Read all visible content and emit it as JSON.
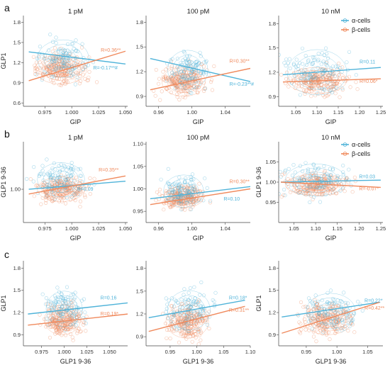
{
  "chart_data": [
    {
      "type": "scatter",
      "row": "a",
      "title": "1 pM",
      "xlabel": "GIP",
      "ylabel": "GLP1",
      "xlim": [
        0.955,
        1.052
      ],
      "ylim": [
        0.55,
        1.9
      ],
      "xticks": [
        "0.975",
        "1.000",
        "1.025",
        "1.050"
      ],
      "xtick_values": [
        0.975,
        1.0,
        1.025,
        1.05
      ],
      "yticks": [
        "0.6",
        "0.9",
        "1.2",
        "1.5",
        "1.8"
      ],
      "ytick_values": [
        0.6,
        0.9,
        1.2,
        1.5,
        1.8
      ],
      "cloud": {
        "alpha": {
          "cx": 0.992,
          "cy": 1.26,
          "sx": 0.012,
          "sy": 0.14
        },
        "beta": {
          "cx": 0.99,
          "cy": 1.1,
          "sx": 0.012,
          "sy": 0.11
        }
      },
      "series": [
        {
          "name": "α-cells",
          "color": "#4fb3d9",
          "fit": [
            [
              0.96,
              1.36
            ],
            [
              1.05,
              1.18
            ]
          ],
          "r_label": "R=-0.17**#",
          "r_pos": [
            1.02,
            1.1
          ]
        },
        {
          "name": "β-cells",
          "color": "#f08a5d",
          "fit": [
            [
              0.96,
              0.93
            ],
            [
              1.05,
              1.37
            ]
          ],
          "r_label": "R=0.36**",
          "r_pos": [
            1.027,
            1.36
          ]
        }
      ]
    },
    {
      "type": "scatter",
      "row": "a",
      "title": "100 pM",
      "xlabel": "GIP",
      "ylabel": "",
      "xlim": [
        0.945,
        1.07
      ],
      "ylim": [
        0.78,
        1.88
      ],
      "xticks": [
        "0.96",
        "1.00",
        "1.04"
      ],
      "xtick_values": [
        0.96,
        1.0,
        1.04
      ],
      "yticks": [
        "0.9",
        "1.2",
        "1.5",
        "1.8"
      ],
      "ytick_values": [
        0.9,
        1.2,
        1.5,
        1.8
      ],
      "cloud": {
        "alpha": {
          "cx": 0.995,
          "cy": 1.22,
          "sx": 0.012,
          "sy": 0.12
        },
        "beta": {
          "cx": 0.99,
          "cy": 1.08,
          "sx": 0.013,
          "sy": 0.09
        }
      },
      "series": [
        {
          "name": "α-cells",
          "color": "#4fb3d9",
          "fit": [
            [
              0.95,
              1.36
            ],
            [
              1.07,
              1.08
            ]
          ],
          "r_label": "R=-0.23**#",
          "r_pos": [
            1.045,
            1.03
          ]
        },
        {
          "name": "β-cells",
          "color": "#f08a5d",
          "fit": [
            [
              0.95,
              0.98
            ],
            [
              1.07,
              1.24
            ]
          ],
          "r_label": "R=0.30**",
          "r_pos": [
            1.045,
            1.31
          ]
        }
      ]
    },
    {
      "type": "scatter",
      "row": "a",
      "title": "10 nM",
      "xlabel": "GIP",
      "ylabel": "",
      "xlim": [
        1.01,
        1.255
      ],
      "ylim": [
        0.78,
        1.9
      ],
      "xticks": [
        "1.05",
        "1.10",
        "1.15",
        "1.20",
        "1.25"
      ],
      "xtick_values": [
        1.05,
        1.1,
        1.15,
        1.2,
        1.25
      ],
      "yticks": [
        "0.9",
        "1.2",
        "1.5",
        "1.8"
      ],
      "ytick_values": [
        0.9,
        1.2,
        1.5,
        1.8
      ],
      "cloud": {
        "alpha": {
          "cx": 1.1,
          "cy": 1.2,
          "sx": 0.035,
          "sy": 0.14
        },
        "beta": {
          "cx": 1.1,
          "cy": 1.1,
          "sx": 0.035,
          "sy": 0.08
        }
      },
      "series": [
        {
          "name": "α-cells",
          "color": "#4fb3d9",
          "fit": [
            [
              1.02,
              1.17
            ],
            [
              1.25,
              1.26
            ]
          ],
          "r_label": "R=0.11",
          "r_pos": [
            1.2,
            1.31
          ]
        },
        {
          "name": "β-cells",
          "color": "#f08a5d",
          "fit": [
            [
              1.02,
              1.08
            ],
            [
              1.25,
              1.12
            ]
          ],
          "r_label": "R=0.06*",
          "r_pos": [
            1.2,
            1.07
          ]
        }
      ]
    },
    {
      "type": "scatter",
      "row": "b",
      "title": "1 pM",
      "xlabel": "GIP",
      "ylabel": "GLP1 9-36",
      "xlim": [
        0.955,
        1.052
      ],
      "ylim": [
        0.93,
        1.1
      ],
      "xticks": [
        "0.975",
        "1.000",
        "1.025",
        "1.050"
      ],
      "xtick_values": [
        0.975,
        1.0,
        1.025,
        1.05
      ],
      "yticks": [
        "1.00"
      ],
      "ytick_values": [
        1.0
      ],
      "cloud": {
        "alpha": {
          "cx": 0.99,
          "cy": 1.02,
          "sx": 0.011,
          "sy": 0.018
        },
        "beta": {
          "cx": 0.99,
          "cy": 1.0,
          "sx": 0.011,
          "sy": 0.013
        }
      },
      "series": [
        {
          "name": "α-cells",
          "color": "#4fb3d9",
          "fit": [
            [
              0.96,
              1.0
            ],
            [
              1.05,
              1.017
            ]
          ],
          "r_label": "R=0.09",
          "r_pos": [
            1.005,
            0.997
          ]
        },
        {
          "name": "β-cells",
          "color": "#f08a5d",
          "fit": [
            [
              0.96,
              0.99
            ],
            [
              1.05,
              1.028
            ]
          ],
          "r_label": "R=0.35**",
          "r_pos": [
            1.025,
            1.037
          ]
        }
      ]
    },
    {
      "type": "scatter",
      "row": "b",
      "title": "100 pM",
      "xlabel": "GIP",
      "ylabel": "",
      "xlim": [
        0.945,
        1.07
      ],
      "ylim": [
        0.925,
        1.105
      ],
      "xticks": [
        "0.96",
        "1.00",
        "1.04"
      ],
      "xtick_values": [
        0.96,
        1.0,
        1.04
      ],
      "yticks": [
        "0.95",
        "1.00",
        "1.05",
        "1.10"
      ],
      "ytick_values": [
        0.95,
        1.0,
        1.05,
        1.1
      ],
      "cloud": {
        "alpha": {
          "cx": 0.99,
          "cy": 0.995,
          "sx": 0.012,
          "sy": 0.018
        },
        "beta": {
          "cx": 0.99,
          "cy": 0.982,
          "sx": 0.012,
          "sy": 0.012
        }
      },
      "series": [
        {
          "name": "α-cells",
          "color": "#4fb3d9",
          "fit": [
            [
              0.95,
              0.978
            ],
            [
              1.07,
              1.005
            ]
          ],
          "r_label": "R=0.10",
          "r_pos": [
            1.038,
            0.974
          ]
        },
        {
          "name": "β-cells",
          "color": "#f08a5d",
          "fit": [
            [
              0.95,
              0.965
            ],
            [
              1.07,
              1.0
            ]
          ],
          "r_label": "R=0.30**",
          "r_pos": [
            1.045,
            1.013
          ]
        }
      ]
    },
    {
      "type": "scatter",
      "row": "b",
      "title": "10 nM",
      "xlabel": "GIP",
      "ylabel": "GLP1 9-36",
      "xlim": [
        1.015,
        1.255
      ],
      "ylim": [
        0.9,
        1.1
      ],
      "xticks": [
        "1.05",
        "1.10",
        "1.15",
        "1.20",
        "1.25"
      ],
      "xtick_values": [
        1.05,
        1.1,
        1.15,
        1.2,
        1.25
      ],
      "yticks": [
        "0.95",
        "1.00",
        "1.05"
      ],
      "ytick_values": [
        0.95,
        1.0,
        1.05
      ],
      "cloud": {
        "alpha": {
          "cx": 1.1,
          "cy": 1.005,
          "sx": 0.035,
          "sy": 0.02
        },
        "beta": {
          "cx": 1.1,
          "cy": 0.993,
          "sx": 0.035,
          "sy": 0.013
        }
      },
      "series": [
        {
          "name": "α-cells",
          "color": "#4fb3d9",
          "fit": [
            [
              1.02,
              1.0
            ],
            [
              1.25,
              1.005
            ]
          ],
          "r_label": "R=0.03",
          "r_pos": [
            1.2,
            1.01
          ]
        },
        {
          "name": "β-cells",
          "color": "#f08a5d",
          "fit": [
            [
              1.02,
              1.0
            ],
            [
              1.25,
              0.987
            ]
          ],
          "r_label": "R=-0.07*",
          "r_pos": [
            1.2,
            0.98
          ]
        }
      ]
    },
    {
      "type": "scatter",
      "row": "c",
      "title": "",
      "xlabel": "GLP1 9-36",
      "ylabel": "GLP1",
      "xlim": [
        0.955,
        1.07
      ],
      "ylim": [
        0.75,
        1.9
      ],
      "xticks": [
        "0.975",
        "1.000",
        "1.025",
        "1.050"
      ],
      "xtick_values": [
        0.975,
        1.0,
        1.025,
        1.05
      ],
      "yticks": [
        "0.9",
        "1.2",
        "1.5",
        "1.8"
      ],
      "ytick_values": [
        0.9,
        1.2,
        1.5,
        1.8
      ],
      "cloud": {
        "alpha": {
          "cx": 1.0,
          "cy": 1.25,
          "sx": 0.01,
          "sy": 0.12
        },
        "beta": {
          "cx": 0.998,
          "cy": 1.1,
          "sx": 0.01,
          "sy": 0.1
        }
      },
      "series": [
        {
          "name": "α-cells",
          "color": "#4fb3d9",
          "fit": [
            [
              0.96,
              1.18
            ],
            [
              1.07,
              1.33
            ]
          ],
          "r_label": "R=0.16",
          "r_pos": [
            1.04,
            1.38
          ]
        },
        {
          "name": "β-cells",
          "color": "#f08a5d",
          "fit": [
            [
              0.96,
              1.03
            ],
            [
              1.07,
              1.18
            ]
          ],
          "r_label": "R=0.19*",
          "r_pos": [
            1.04,
            1.16
          ]
        }
      ]
    },
    {
      "type": "scatter",
      "row": "c",
      "title": "",
      "xlabel": "GLP1 9-36",
      "ylabel": "",
      "xlim": [
        0.905,
        1.1
      ],
      "ylim": [
        0.78,
        1.9
      ],
      "xticks": [
        "0.95",
        "1.00",
        "1.05",
        "1.10"
      ],
      "xtick_values": [
        0.95,
        1.0,
        1.05,
        1.1
      ],
      "yticks": [
        "0.9",
        "1.2",
        "1.5",
        "1.8"
      ],
      "ytick_values": [
        0.9,
        1.2,
        1.5,
        1.8
      ],
      "cloud": {
        "alpha": {
          "cx": 0.985,
          "cy": 1.25,
          "sx": 0.02,
          "sy": 0.13
        },
        "beta": {
          "cx": 0.982,
          "cy": 1.1,
          "sx": 0.02,
          "sy": 0.11
        }
      },
      "series": [
        {
          "name": "α-cells",
          "color": "#4fb3d9",
          "fit": [
            [
              0.91,
              1.15
            ],
            [
              1.09,
              1.38
            ]
          ],
          "r_label": "R=0.18*",
          "r_pos": [
            1.06,
            1.39
          ]
        },
        {
          "name": "β-cells",
          "color": "#f08a5d",
          "fit": [
            [
              0.91,
              0.97
            ],
            [
              1.09,
              1.3
            ]
          ],
          "r_label": "R=0.31**",
          "r_pos": [
            1.06,
            1.23
          ]
        }
      ]
    },
    {
      "type": "scatter",
      "row": "c",
      "title": "",
      "xlabel": "GLP1 9-36",
      "ylabel": "GLP1",
      "xlim": [
        0.905,
        1.075
      ],
      "ylim": [
        0.75,
        1.9
      ],
      "xticks": [
        "0.95",
        "1.00",
        "1.05"
      ],
      "xtick_values": [
        0.95,
        1.0,
        1.05
      ],
      "yticks": [
        "0.9",
        "1.2",
        "1.5",
        "1.8"
      ],
      "ytick_values": [
        0.9,
        1.2,
        1.5,
        1.8
      ],
      "cloud": {
        "alpha": {
          "cx": 0.99,
          "cy": 1.22,
          "sx": 0.02,
          "sy": 0.12
        },
        "beta": {
          "cx": 0.985,
          "cy": 1.1,
          "sx": 0.02,
          "sy": 0.1
        }
      },
      "series": [
        {
          "name": "α-cells",
          "color": "#4fb3d9",
          "fit": [
            [
              0.91,
              1.14
            ],
            [
              1.07,
              1.34
            ]
          ],
          "r_label": "R=0.22*",
          "r_pos": [
            1.045,
            1.34
          ]
        },
        {
          "name": "β-cells",
          "color": "#f08a5d",
          "fit": [
            [
              0.91,
              0.92
            ],
            [
              1.07,
              1.34
            ]
          ],
          "r_label": "R=0.42**",
          "r_pos": [
            1.045,
            1.24
          ]
        }
      ]
    }
  ],
  "row_labels": [
    "a",
    "b",
    "c"
  ],
  "legend": [
    {
      "label": "α-cells",
      "color": "#4fb3d9"
    },
    {
      "label": "β-cells",
      "color": "#f08a5d"
    }
  ],
  "colors": {
    "alpha": "#4fb3d9",
    "beta": "#f08a5d",
    "axis": "#444444"
  }
}
